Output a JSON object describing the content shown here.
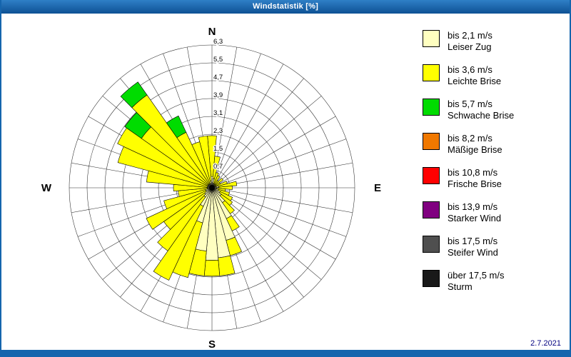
{
  "window": {
    "title": "Windstatistik [%]"
  },
  "footer": {
    "date": "2.7.2021"
  },
  "compass": {
    "north": "N",
    "east": "E",
    "south": "S",
    "west": "W"
  },
  "chart_data": {
    "type": "wind-rose",
    "title": "Windstatistik [%]",
    "unit": "%",
    "legend_position": "right",
    "grid": "polar, 8 rings, spokes every 10 deg",
    "direction_step_deg": 10,
    "direction_convention": "index 0 = N, clockwise",
    "rings": {
      "count": 8,
      "max": 6.3,
      "labels_inner_to_outer": [
        "0,7",
        "1,5",
        "2,3",
        "3,1",
        "3,9",
        "4,7",
        "5,5",
        "6,3"
      ]
    },
    "series": [
      {
        "name": "bis 2,1 m/s",
        "desc": "Leiser Zug",
        "color": "#FFFFC0",
        "values": [
          0.5,
          0.4,
          0.2,
          0.2,
          0.1,
          0.2,
          0.1,
          0.2,
          0.3,
          0.3,
          0.2,
          0.3,
          0.4,
          0.5,
          0.8,
          1.5,
          2.4,
          3.1,
          3.2,
          2.8,
          1.6,
          0.9,
          0.5,
          0.4,
          0.3,
          0.3,
          0.2,
          0.2,
          0.2,
          0.2,
          0.2,
          0.2,
          0.2,
          0.2,
          0.2,
          0.3
        ]
      },
      {
        "name": "bis 3,6 m/s",
        "desc": "Leichte Brise",
        "color": "#FFFF00",
        "values": [
          1.8,
          1.0,
          0.5,
          0.4,
          0.3,
          0.4,
          0.3,
          0.5,
          0.8,
          0.6,
          0.4,
          0.5,
          0.6,
          0.6,
          0.6,
          0.6,
          0.7,
          0.8,
          0.7,
          1.1,
          2.5,
          3.6,
          2.9,
          2.2,
          2.9,
          1.9,
          1.3,
          1.5,
          2.7,
          4.1,
          4.4,
          3.6,
          4.8,
          2.5,
          1.9,
          2.0
        ]
      },
      {
        "name": "bis 5,7 m/s",
        "desc": "Schwache Brise",
        "color": "#00DC00",
        "values": [
          0,
          0,
          0,
          0,
          0,
          0,
          0,
          0,
          0,
          0,
          0,
          0,
          0,
          0,
          0,
          0,
          0,
          0,
          0,
          0,
          0,
          0,
          0,
          0,
          0,
          0,
          0,
          0,
          0,
          0,
          0,
          0.9,
          0.7,
          0.8,
          0,
          0
        ]
      },
      {
        "name": "bis 8,2 m/s",
        "desc": "Mäßige Brise",
        "color": "#F07800",
        "values": [
          0,
          0,
          0,
          0,
          0,
          0,
          0,
          0,
          0,
          0,
          0,
          0,
          0,
          0,
          0,
          0,
          0,
          0,
          0,
          0,
          0,
          0,
          0,
          0,
          0,
          0,
          0,
          0,
          0,
          0,
          0,
          0,
          0,
          0,
          0,
          0
        ]
      },
      {
        "name": "bis 10,8 m/s",
        "desc": "Frische Brise",
        "color": "#FF0000",
        "values": [
          0,
          0,
          0,
          0,
          0,
          0,
          0,
          0,
          0,
          0,
          0,
          0,
          0,
          0,
          0,
          0,
          0,
          0,
          0,
          0,
          0,
          0,
          0,
          0,
          0,
          0,
          0,
          0,
          0,
          0,
          0,
          0,
          0,
          0,
          0,
          0
        ]
      },
      {
        "name": "bis 13,9 m/s",
        "desc": "Starker Wind",
        "color": "#800080",
        "values": [
          0,
          0,
          0,
          0,
          0,
          0,
          0,
          0,
          0,
          0,
          0,
          0,
          0,
          0,
          0,
          0,
          0,
          0,
          0,
          0,
          0,
          0,
          0,
          0,
          0,
          0,
          0,
          0,
          0,
          0,
          0,
          0,
          0,
          0,
          0,
          0
        ]
      },
      {
        "name": "bis 17,5 m/s",
        "desc": "Steifer Wind",
        "color": "#4F4F4F",
        "values": [
          0,
          0,
          0,
          0,
          0,
          0,
          0,
          0,
          0,
          0,
          0,
          0,
          0,
          0,
          0,
          0,
          0,
          0,
          0,
          0,
          0,
          0,
          0,
          0,
          0,
          0,
          0,
          0,
          0,
          0,
          0,
          0,
          0,
          0,
          0,
          0
        ]
      },
      {
        "name": "über 17,5 m/s",
        "desc": "Sturm",
        "color": "#191919",
        "values": [
          0,
          0,
          0,
          0,
          0,
          0,
          0,
          0,
          0,
          0,
          0,
          0,
          0,
          0,
          0,
          0,
          0,
          0,
          0,
          0,
          0,
          0,
          0,
          0,
          0,
          0,
          0,
          0,
          0,
          0,
          0,
          0,
          0,
          0,
          0,
          0
        ]
      }
    ]
  }
}
